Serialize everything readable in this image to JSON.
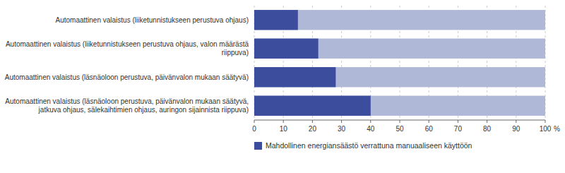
{
  "chart_data": {
    "type": "bar",
    "orientation": "horizontal",
    "categories": [
      "Automaattinen valaistus (liiketunnistukseen perustuva ohjaus)",
      "Automaattinen valaistus (liiketunnistukseen perustuva ohjaus, valon määrästä\nriippuva)",
      "Automaattinen valaistus (läsnäoloon perustuva, päivänvalon mukaan säätyvä)",
      "Automaattinen valaistus (läsnäoloon perustuva, päivänvalon mukaan säätyvä,\njatkuva ohjaus, sälekaihtimien ohjaus, auringon sijainnista riippuva)"
    ],
    "series": [
      {
        "color": "#b0b8d8",
        "values": [
          100,
          100,
          100,
          100
        ]
      },
      {
        "name": "Mahdollinen energiansäästö verrattuna manuaaliseen käyttöön",
        "color": "#3d4d9e",
        "values": [
          15,
          22,
          28,
          40
        ]
      }
    ],
    "xlim": [
      0,
      100
    ],
    "xticks": [
      0,
      10,
      20,
      30,
      40,
      50,
      60,
      70,
      80,
      90,
      100
    ],
    "xlabel": "%",
    "grid": true,
    "legend": "bottom"
  }
}
